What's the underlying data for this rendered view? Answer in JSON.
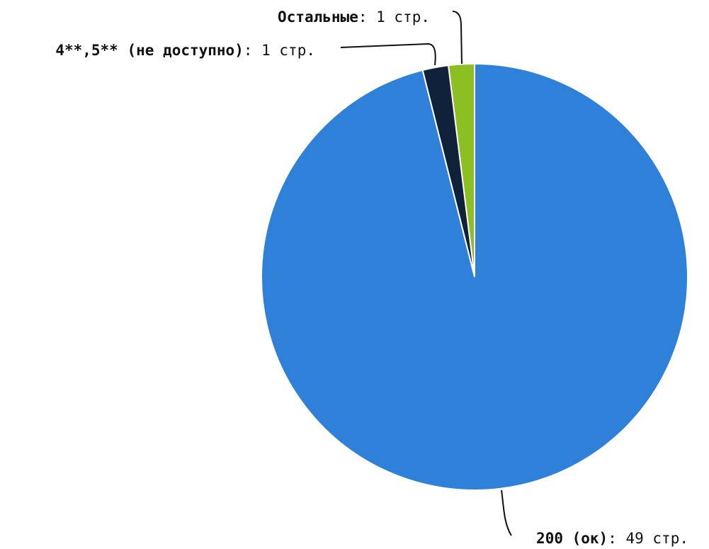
{
  "chart_data": {
    "type": "pie",
    "colors": {
      "slice_200": "#2f80d8",
      "slice_4xx_5xx": "#10223a",
      "slice_other": "#8cbf22",
      "leader": "#111111"
    },
    "slices": [
      {
        "name": "200 (ок)",
        "value": 49,
        "value_text": ": 49 стр.",
        "color_key": "slice_200"
      },
      {
        "name": "4**,5** (не доступно)",
        "value": 1,
        "value_text": ": 1 стр.",
        "color_key": "slice_4xx_5xx"
      },
      {
        "name": "Остальные",
        "value": 1,
        "value_text": ": 1 стр.",
        "color_key": "slice_other"
      }
    ]
  }
}
